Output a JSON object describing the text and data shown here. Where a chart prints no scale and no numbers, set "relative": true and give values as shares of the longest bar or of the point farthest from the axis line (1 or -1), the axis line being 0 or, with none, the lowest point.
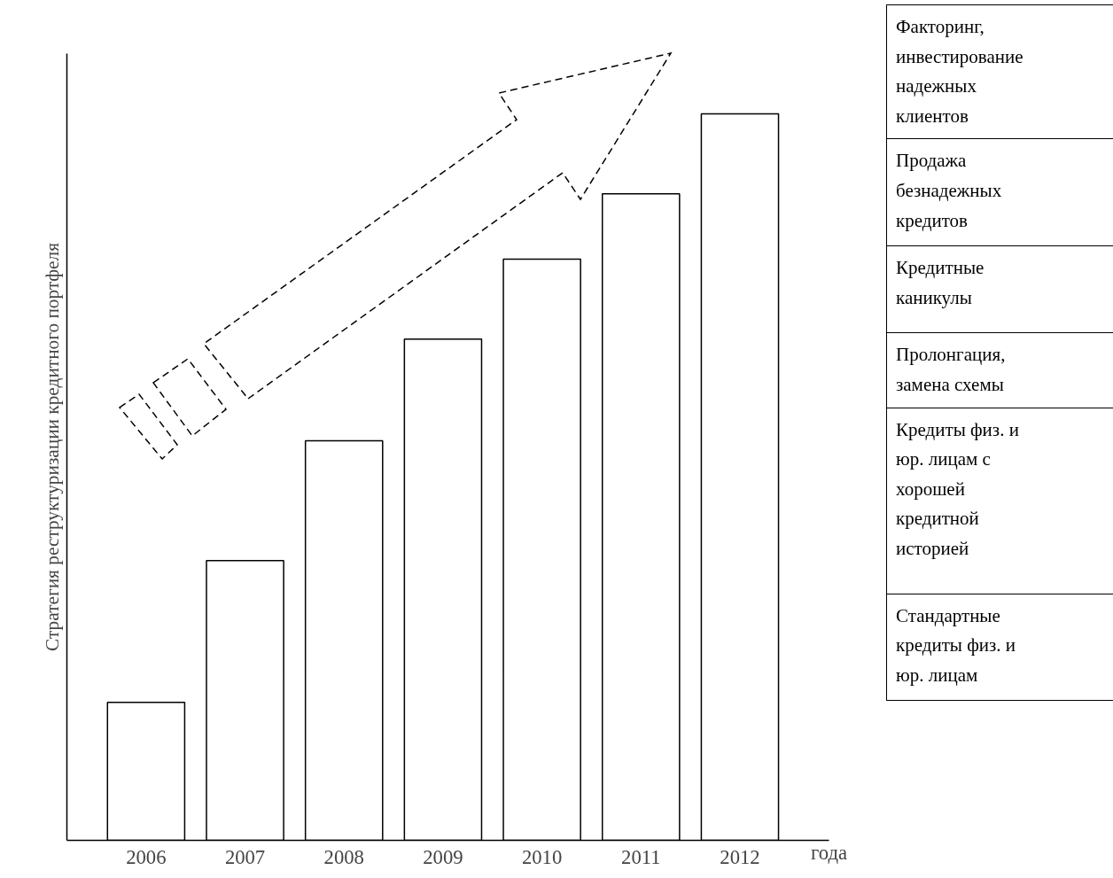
{
  "chart_data": {
    "type": "bar",
    "relative": true,
    "ylabel": "Стратегия реструктуризации кредитного портфеля",
    "xlabel": "года",
    "categories": [
      "2006",
      "2007",
      "2008",
      "2009",
      "2010",
      "2011",
      "2012"
    ],
    "values": [
      0.19,
      0.385,
      0.55,
      0.69,
      0.8,
      0.89,
      1.0
    ],
    "color": "#ffffff",
    "grid": false,
    "annotations": [
      "Факторинг,\nинвестирование\nнадежных\nклиентов",
      "Продажа\nбезнадежных\nкредитов",
      "Кредитные\nканикулы",
      "Пролонгация,\nзамена схемы",
      "Кредиты физ. и\nюр. лицам с\nхорошей\nкредитной\nисторией",
      "Стандартные\nкредиты физ. и\nюр. лицам"
    ]
  }
}
